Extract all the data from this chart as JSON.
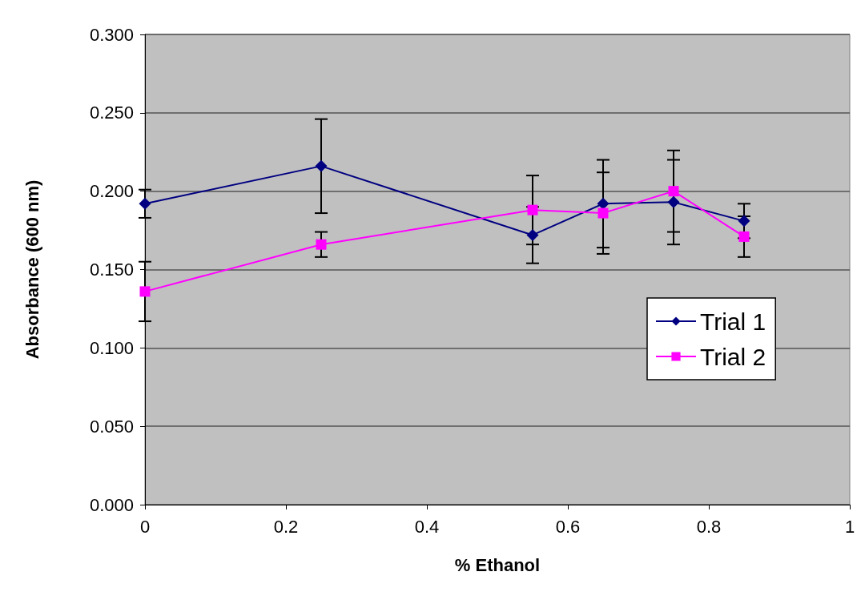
{
  "chart_data": {
    "type": "line",
    "xlabel": "% Ethanol",
    "ylabel": "Absorbance (600 nm)",
    "xlim": [
      0,
      1
    ],
    "xticks": [
      0,
      0.2,
      0.4,
      0.6,
      0.8,
      1
    ],
    "ylim": [
      0,
      0.3
    ],
    "yticks": [
      {
        "value": 0,
        "label": "0.000"
      },
      {
        "value": 0.05,
        "label": "0.050"
      },
      {
        "value": 0.1,
        "label": "0.100"
      },
      {
        "value": 0.15,
        "label": "0.150"
      },
      {
        "value": 0.2,
        "label": "0.200"
      },
      {
        "value": 0.25,
        "label": "0.250"
      },
      {
        "value": 0.3,
        "label": "0.300"
      }
    ],
    "x": [
      0,
      0.25,
      0.55,
      0.65,
      0.75,
      0.85
    ],
    "series": [
      {
        "name": "Trial 1",
        "color": "#000080",
        "marker": "diamond",
        "values": [
          0.192,
          0.216,
          0.172,
          0.192,
          0.193,
          0.181
        ],
        "errors": [
          0.009,
          0.03,
          0.018,
          0.028,
          0.027,
          0.011
        ]
      },
      {
        "name": "Trial 2",
        "color": "#ff00ff",
        "marker": "square",
        "values": [
          0.136,
          0.166,
          0.188,
          0.186,
          0.2,
          0.171
        ],
        "errors": [
          0.019,
          0.008,
          0.022,
          0.026,
          0.026,
          0.013
        ]
      }
    ],
    "grid": "y",
    "legend": "right",
    "line_style": "solid"
  }
}
